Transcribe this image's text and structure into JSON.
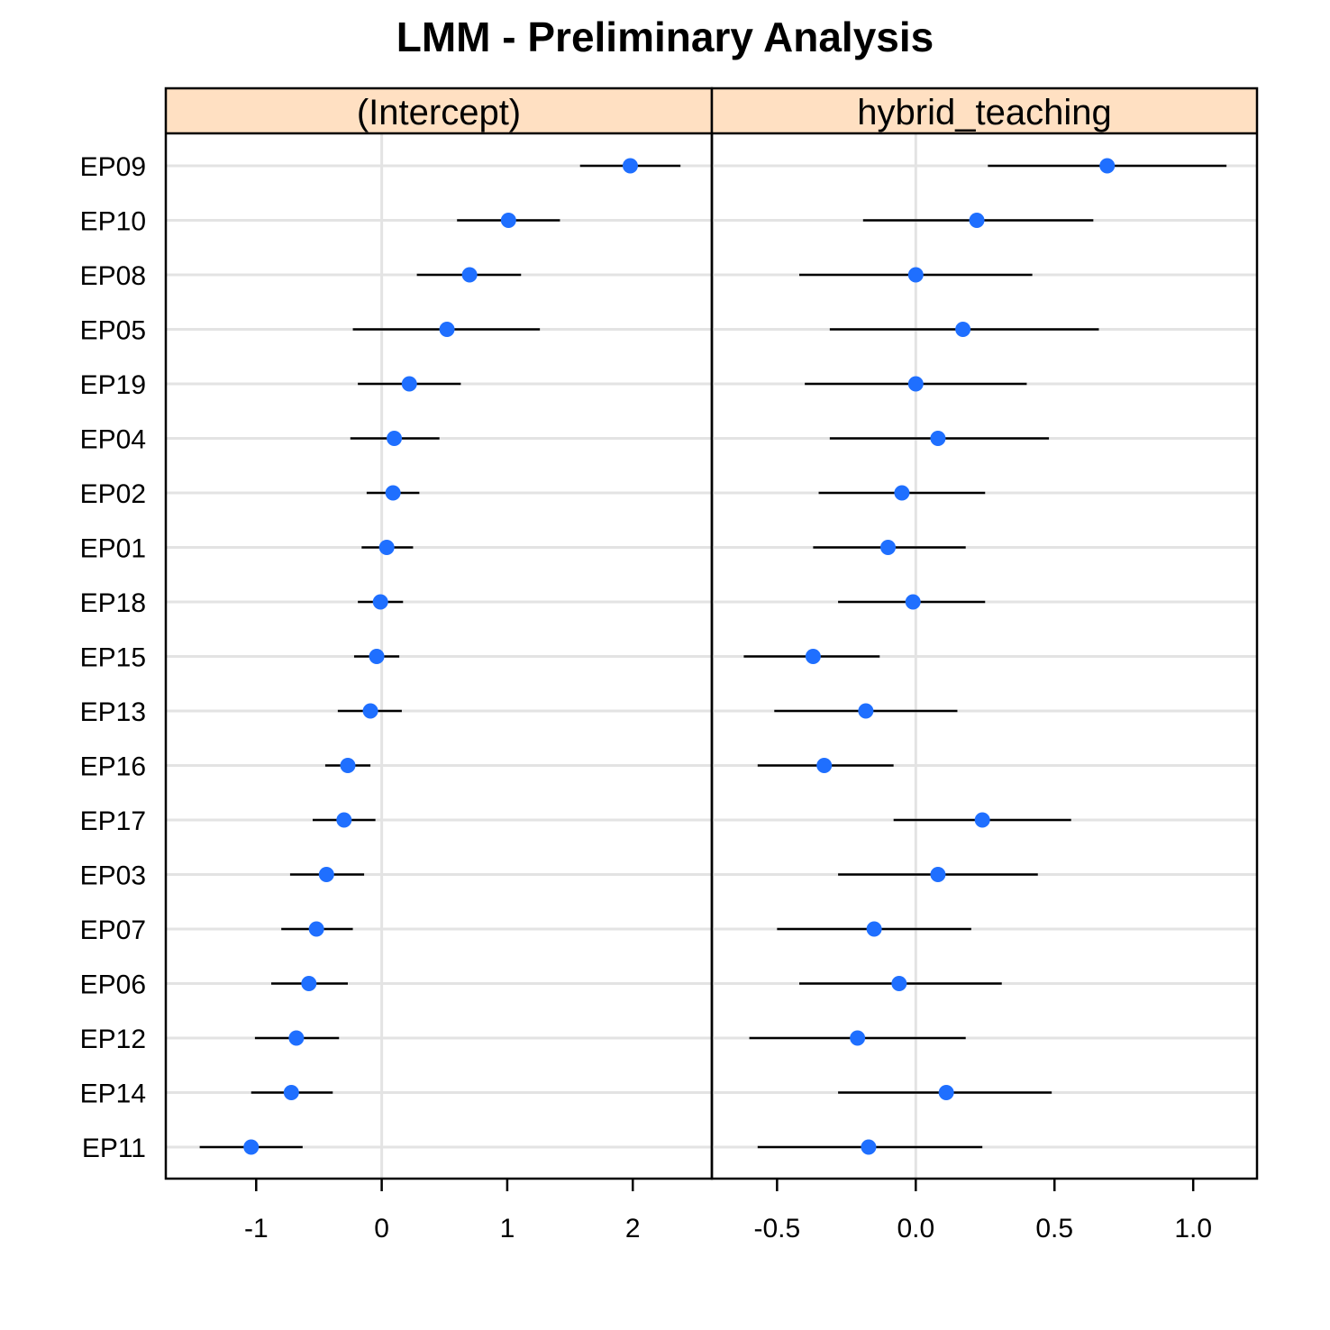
{
  "chart_data": {
    "type": "dotplot",
    "title": "LMM - Preliminary Analysis",
    "categories": [
      "EP09",
      "EP10",
      "EP08",
      "EP05",
      "EP19",
      "EP04",
      "EP02",
      "EP01",
      "EP18",
      "EP15",
      "EP13",
      "EP16",
      "EP17",
      "EP03",
      "EP07",
      "EP06",
      "EP12",
      "EP14",
      "EP11"
    ],
    "panels": [
      {
        "name": "(Intercept)",
        "xlim": [
          -1.72,
          2.63
        ],
        "ticks": [
          -1,
          0,
          1,
          2
        ],
        "tick_labels": [
          "-1",
          "0",
          "1",
          "2"
        ],
        "reference": 0,
        "estimates": [
          1.98,
          1.01,
          0.7,
          0.52,
          0.22,
          0.1,
          0.09,
          0.04,
          -0.01,
          -0.04,
          -0.09,
          -0.27,
          -0.3,
          -0.44,
          -0.52,
          -0.58,
          -0.68,
          -0.72,
          -1.04
        ],
        "lower": [
          1.58,
          0.6,
          0.28,
          -0.23,
          -0.19,
          -0.25,
          -0.12,
          -0.16,
          -0.19,
          -0.22,
          -0.35,
          -0.45,
          -0.55,
          -0.73,
          -0.8,
          -0.88,
          -1.01,
          -1.04,
          -1.45
        ],
        "upper": [
          2.38,
          1.42,
          1.11,
          1.26,
          0.63,
          0.46,
          0.3,
          0.25,
          0.17,
          0.14,
          0.16,
          -0.09,
          -0.05,
          -0.14,
          -0.23,
          -0.27,
          -0.34,
          -0.39,
          -0.63
        ]
      },
      {
        "name": "hybrid_teaching",
        "xlim": [
          -0.735,
          1.23
        ],
        "ticks": [
          -0.5,
          0.0,
          0.5,
          1.0
        ],
        "tick_labels": [
          "-0.5",
          "0.0",
          "0.5",
          "1.0"
        ],
        "reference": 0,
        "estimates": [
          0.69,
          0.22,
          0.0,
          0.17,
          0.0,
          0.08,
          -0.05,
          -0.1,
          -0.01,
          -0.37,
          -0.18,
          -0.33,
          0.24,
          0.08,
          -0.15,
          -0.06,
          -0.21,
          0.11,
          -0.17
        ],
        "lower": [
          0.26,
          -0.19,
          -0.42,
          -0.31,
          -0.4,
          -0.31,
          -0.35,
          -0.37,
          -0.28,
          -0.62,
          -0.51,
          -0.57,
          -0.08,
          -0.28,
          -0.5,
          -0.42,
          -0.6,
          -0.28,
          -0.57
        ],
        "upper": [
          1.12,
          0.64,
          0.42,
          0.66,
          0.4,
          0.48,
          0.25,
          0.18,
          0.25,
          -0.13,
          0.15,
          -0.08,
          0.56,
          0.44,
          0.2,
          0.31,
          0.18,
          0.49,
          0.24
        ]
      }
    ],
    "grid": true,
    "legend": "none",
    "colors": {
      "point": "#1f6fff",
      "strip": "#ffe0c2",
      "grid": "#e3e3e3",
      "line": "#000000"
    }
  }
}
